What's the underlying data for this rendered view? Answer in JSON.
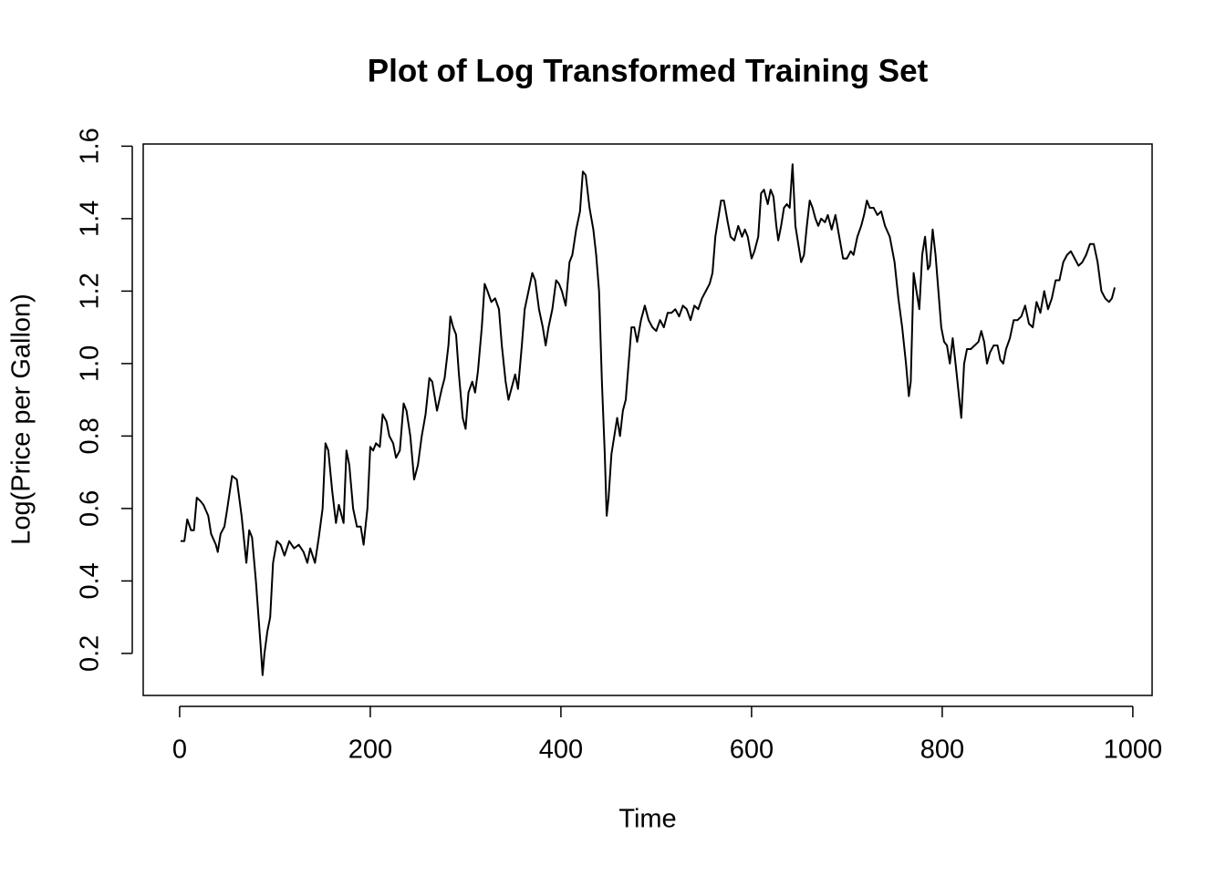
{
  "chart_data": {
    "type": "line",
    "title": "Plot of Log Transformed Training Set",
    "x_label": "Time",
    "y_label": "Log(Price per Gallon)",
    "color": "#000000",
    "xlim": [
      -38.2,
      1020.2
    ],
    "xticks": [
      0,
      200,
      400,
      600,
      800,
      1000
    ],
    "ylim": [
      0.084,
      1.606
    ],
    "yticks": [
      0.2,
      0.4,
      0.6,
      0.8,
      {
        "value": 1.0,
        "label": "1.0"
      },
      1.2,
      1.4,
      1.6
    ],
    "x": [
      1,
      5,
      8,
      12,
      15,
      18,
      22,
      25,
      30,
      33,
      38,
      40,
      43,
      47,
      50,
      55,
      60,
      65,
      70,
      73,
      76,
      80,
      85,
      87,
      89,
      92,
      95,
      98,
      102,
      106,
      110,
      115,
      120,
      125,
      130,
      134,
      137,
      142,
      146,
      150,
      153,
      156,
      160,
      164,
      167,
      170,
      172,
      175,
      178,
      182,
      186,
      190,
      193,
      197,
      200,
      203,
      206,
      210,
      213,
      217,
      220,
      224,
      227,
      231,
      235,
      238,
      242,
      246,
      250,
      254,
      258,
      262,
      265,
      270,
      275,
      278,
      282,
      284,
      287,
      290,
      293,
      297,
      300,
      303,
      307,
      310,
      313,
      317,
      320,
      323,
      327,
      331,
      335,
      338,
      342,
      345,
      348,
      352,
      355,
      359,
      362,
      366,
      370,
      373,
      377,
      381,
      384,
      387,
      391,
      395,
      398,
      401,
      405,
      409,
      412,
      416,
      420,
      423,
      426,
      430,
      434,
      437,
      440,
      443,
      446,
      448,
      450,
      453,
      456,
      459,
      462,
      465,
      468,
      471,
      474,
      477,
      480,
      484,
      488,
      492,
      496,
      500,
      504,
      508,
      512,
      516,
      520,
      524,
      528,
      532,
      536,
      540,
      544,
      548,
      552,
      556,
      559,
      562,
      565,
      568,
      571,
      575,
      578,
      582,
      586,
      590,
      593,
      596,
      600,
      603,
      607,
      610,
      613,
      617,
      620,
      623,
      626,
      628,
      631,
      634,
      637,
      640,
      643,
      646,
      649,
      652,
      655,
      658,
      661,
      664,
      667,
      670,
      673,
      677,
      680,
      684,
      688,
      692,
      696,
      700,
      704,
      707,
      711,
      715,
      718,
      721,
      724,
      728,
      732,
      736,
      740,
      745,
      750,
      754,
      758,
      762,
      765,
      767,
      770,
      773,
      776,
      779,
      782,
      785,
      787,
      790,
      793,
      796,
      799,
      802,
      805,
      808,
      811,
      814,
      818,
      820,
      823,
      826,
      830,
      834,
      838,
      841,
      844,
      847,
      850,
      854,
      858,
      861,
      864,
      867,
      871,
      875,
      879,
      883,
      887,
      891,
      895,
      899,
      903,
      907,
      911,
      915,
      919,
      923,
      927,
      931,
      935,
      939,
      943,
      947,
      951,
      955,
      959,
      963,
      967,
      971,
      975,
      978,
      981
    ],
    "values": [
      0.51,
      0.51,
      0.57,
      0.54,
      0.54,
      0.63,
      0.62,
      0.61,
      0.58,
      0.53,
      0.5,
      0.48,
      0.53,
      0.55,
      0.6,
      0.69,
      0.68,
      0.58,
      0.45,
      0.54,
      0.52,
      0.4,
      0.22,
      0.14,
      0.2,
      0.26,
      0.3,
      0.45,
      0.51,
      0.5,
      0.47,
      0.51,
      0.49,
      0.5,
      0.48,
      0.45,
      0.49,
      0.45,
      0.52,
      0.6,
      0.78,
      0.76,
      0.65,
      0.56,
      0.61,
      0.58,
      0.56,
      0.76,
      0.72,
      0.6,
      0.55,
      0.55,
      0.5,
      0.6,
      0.77,
      0.76,
      0.78,
      0.77,
      0.86,
      0.84,
      0.8,
      0.78,
      0.74,
      0.76,
      0.89,
      0.87,
      0.8,
      0.68,
      0.72,
      0.8,
      0.86,
      0.96,
      0.95,
      0.87,
      0.93,
      0.96,
      1.05,
      1.13,
      1.1,
      1.08,
      0.97,
      0.85,
      0.82,
      0.92,
      0.95,
      0.92,
      0.98,
      1.1,
      1.22,
      1.2,
      1.17,
      1.18,
      1.15,
      1.05,
      0.95,
      0.9,
      0.93,
      0.97,
      0.93,
      1.05,
      1.15,
      1.2,
      1.25,
      1.23,
      1.15,
      1.1,
      1.05,
      1.1,
      1.15,
      1.23,
      1.22,
      1.2,
      1.16,
      1.28,
      1.3,
      1.37,
      1.42,
      1.53,
      1.52,
      1.43,
      1.37,
      1.3,
      1.2,
      0.95,
      0.75,
      0.58,
      0.63,
      0.75,
      0.8,
      0.85,
      0.8,
      0.87,
      0.9,
      1.0,
      1.1,
      1.1,
      1.06,
      1.12,
      1.16,
      1.12,
      1.1,
      1.09,
      1.12,
      1.1,
      1.14,
      1.14,
      1.15,
      1.13,
      1.16,
      1.15,
      1.12,
      1.16,
      1.15,
      1.18,
      1.2,
      1.22,
      1.25,
      1.35,
      1.4,
      1.45,
      1.45,
      1.39,
      1.35,
      1.34,
      1.38,
      1.35,
      1.37,
      1.35,
      1.29,
      1.31,
      1.35,
      1.47,
      1.48,
      1.44,
      1.48,
      1.46,
      1.38,
      1.34,
      1.38,
      1.43,
      1.44,
      1.43,
      1.55,
      1.38,
      1.33,
      1.28,
      1.3,
      1.38,
      1.45,
      1.43,
      1.4,
      1.38,
      1.4,
      1.39,
      1.41,
      1.37,
      1.41,
      1.35,
      1.29,
      1.29,
      1.31,
      1.3,
      1.35,
      1.38,
      1.41,
      1.45,
      1.43,
      1.43,
      1.41,
      1.42,
      1.38,
      1.35,
      1.28,
      1.18,
      1.1,
      1.0,
      0.91,
      0.95,
      1.25,
      1.2,
      1.15,
      1.3,
      1.35,
      1.26,
      1.27,
      1.37,
      1.3,
      1.2,
      1.1,
      1.06,
      1.05,
      1.0,
      1.07,
      1.0,
      0.9,
      0.85,
      1.0,
      1.04,
      1.04,
      1.05,
      1.06,
      1.09,
      1.06,
      1.0,
      1.03,
      1.05,
      1.05,
      1.01,
      1.0,
      1.04,
      1.07,
      1.12,
      1.12,
      1.13,
      1.16,
      1.11,
      1.1,
      1.17,
      1.14,
      1.2,
      1.15,
      1.18,
      1.23,
      1.23,
      1.28,
      1.3,
      1.31,
      1.29,
      1.27,
      1.28,
      1.3,
      1.33,
      1.33,
      1.28,
      1.2,
      1.18,
      1.17,
      1.18,
      1.21
    ]
  }
}
